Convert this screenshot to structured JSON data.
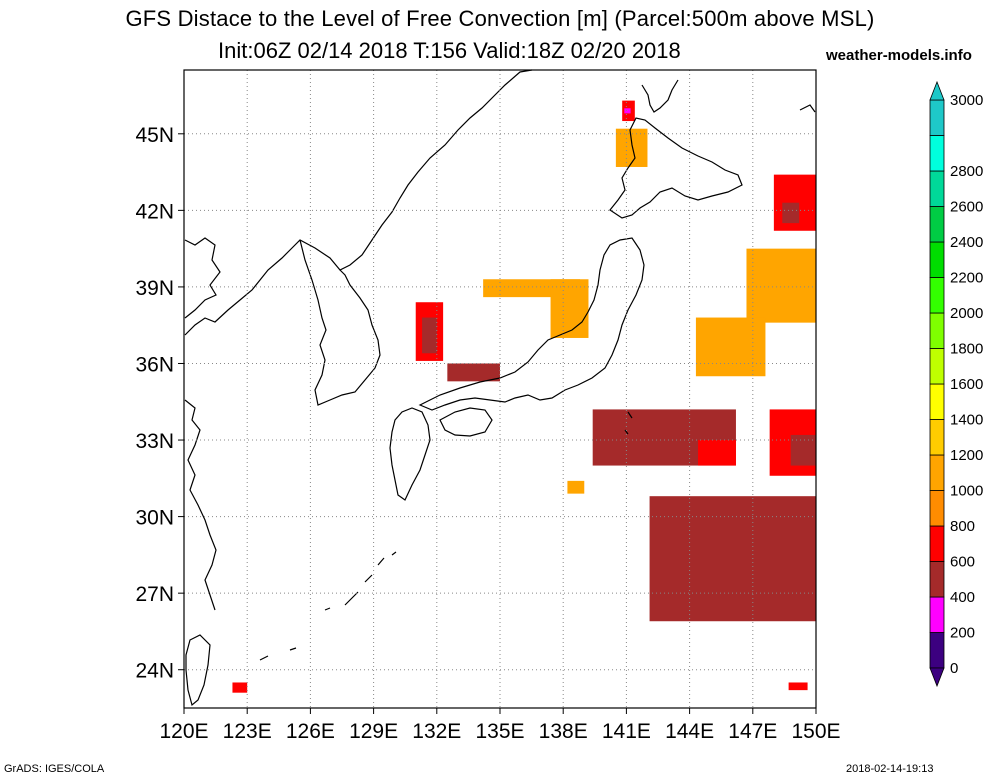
{
  "header": {
    "title_line1": "GFS Distace to the Level of Free Convection [m] (Parcel:500m above MSL)",
    "title_line2": "Init:06Z 02/14 2018 T:156 Valid:18Z 02/20 2018",
    "brand": "weather-models.info"
  },
  "footer": {
    "software": "GrADS: IGES/COLA",
    "timestamp": "2018-02-14-19:13"
  },
  "map": {
    "lon_range": [
      120,
      150
    ],
    "lat_range": [
      22.5,
      47.5
    ],
    "lon_ticks": [
      {
        "value": 120,
        "label": "120E"
      },
      {
        "value": 123,
        "label": "123E"
      },
      {
        "value": 126,
        "label": "126E"
      },
      {
        "value": 129,
        "label": "129E"
      },
      {
        "value": 132,
        "label": "132E"
      },
      {
        "value": 135,
        "label": "135E"
      },
      {
        "value": 138,
        "label": "138E"
      },
      {
        "value": 141,
        "label": "141E"
      },
      {
        "value": 144,
        "label": "144E"
      },
      {
        "value": 147,
        "label": "147E"
      },
      {
        "value": 150,
        "label": "150E"
      }
    ],
    "lat_ticks": [
      {
        "value": 24,
        "label": "24N"
      },
      {
        "value": 27,
        "label": "27N"
      },
      {
        "value": 30,
        "label": "30N"
      },
      {
        "value": 33,
        "label": "33N"
      },
      {
        "value": 36,
        "label": "36N"
      },
      {
        "value": 39,
        "label": "39N"
      },
      {
        "value": 42,
        "label": "42N"
      },
      {
        "value": 45,
        "label": "45N"
      }
    ],
    "grid": true
  },
  "colorbar": {
    "levels": [
      "0",
      "200",
      "400",
      "600",
      "800",
      "1000",
      "1200",
      "1400",
      "1600",
      "1800",
      "2000",
      "2200",
      "2400",
      "2600",
      "2800",
      "3000"
    ],
    "colors": [
      "#3c0080",
      "#ff00ff",
      "#a52a2a",
      "#ff0000",
      "#ff8c00",
      "#ffa500",
      "#ffcc00",
      "#ffff00",
      "#bfff00",
      "#7fff00",
      "#33ff00",
      "#00dd00",
      "#00cc44",
      "#00d999",
      "#00ffdd",
      "#1ec8c8"
    ],
    "units": "m"
  },
  "cell_patches": [
    {
      "region": "hokkaido-north",
      "lon": [
        140.8,
        141.4
      ],
      "lat": [
        45.5,
        46.3
      ],
      "color": "#ff0000"
    },
    {
      "region": "hokkaido-north-core",
      "lon": [
        140.9,
        141.2
      ],
      "lat": [
        45.8,
        46.0
      ],
      "color": "#ff00ff"
    },
    {
      "region": "hokkaido-west",
      "lon": [
        140.5,
        142.0
      ],
      "lat": [
        43.7,
        45.2
      ],
      "color": "#ffa500"
    },
    {
      "region": "kurils",
      "lon": [
        148.0,
        150.0
      ],
      "lat": [
        41.2,
        43.4
      ],
      "color": "#ff0000"
    },
    {
      "region": "kurils-core",
      "lon": [
        148.4,
        149.2
      ],
      "lat": [
        41.5,
        42.3
      ],
      "color": "#a52a2a"
    },
    {
      "region": "korea-east-coast",
      "lon": [
        131.0,
        132.3
      ],
      "lat": [
        36.1,
        38.4
      ],
      "color": "#ff0000"
    },
    {
      "region": "korea-east-core",
      "lon": [
        131.3,
        132.0
      ],
      "lat": [
        36.4,
        37.8
      ],
      "color": "#a52a2a"
    },
    {
      "region": "sea-of-japan-band",
      "lon": [
        132.5,
        135.0
      ],
      "lat": [
        35.3,
        36.0
      ],
      "color": "#a52a2a"
    },
    {
      "region": "honshu-north-sea",
      "lon": [
        134.2,
        138.8
      ],
      "lat": [
        38.6,
        39.3
      ],
      "color": "#ffa500"
    },
    {
      "region": "sado-area",
      "lon": [
        137.4,
        139.2
      ],
      "lat": [
        37.0,
        39.3
      ],
      "color": "#ffa500"
    },
    {
      "region": "pacific-east-39n",
      "lon": [
        146.7,
        150.0
      ],
      "lat": [
        37.6,
        40.5
      ],
      "color": "#ffa500"
    },
    {
      "region": "pacific-east-36n",
      "lon": [
        144.3,
        147.6
      ],
      "lat": [
        35.5,
        37.8
      ],
      "color": "#ffa500"
    },
    {
      "region": "off-tokyo-band",
      "lon": [
        139.4,
        146.2
      ],
      "lat": [
        32.0,
        34.2
      ],
      "color": "#a52a2a"
    },
    {
      "region": "off-tokyo-band-red",
      "lon": [
        144.4,
        146.2
      ],
      "lat": [
        32.0,
        33.0
      ],
      "color": "#ff0000"
    },
    {
      "region": "pacific-east-33n",
      "lon": [
        147.8,
        150.0
      ],
      "lat": [
        31.6,
        34.2
      ],
      "color": "#ff0000"
    },
    {
      "region": "pacific-east-33n-core",
      "lon": [
        148.8,
        150.0
      ],
      "lat": [
        32.0,
        33.2
      ],
      "color": "#a52a2a"
    },
    {
      "region": "south-patch",
      "lon": [
        138.2,
        139.0
      ],
      "lat": [
        30.9,
        31.4
      ],
      "color": "#ffa500"
    },
    {
      "region": "chain-southeast",
      "lon": [
        142.1,
        150.0
      ],
      "lat": [
        25.9,
        30.8
      ],
      "color": "#a52a2a"
    },
    {
      "region": "taiwan-east",
      "lon": [
        122.3,
        123.0
      ],
      "lat": [
        23.1,
        23.5
      ],
      "color": "#ff0000"
    },
    {
      "region": "south-east-dot",
      "lon": [
        148.7,
        149.6
      ],
      "lat": [
        23.2,
        23.5
      ],
      "color": "#ff0000"
    }
  ]
}
